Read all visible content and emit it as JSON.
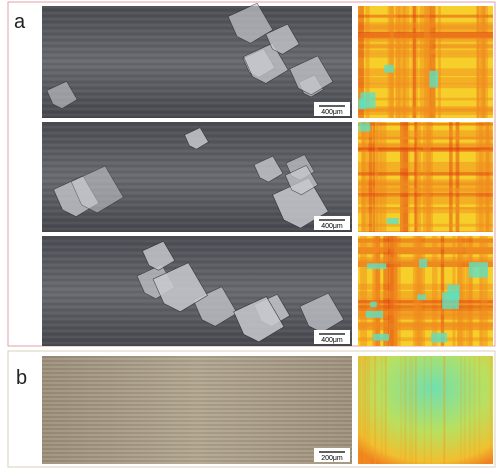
{
  "panel_a": {
    "label": "a",
    "rows": [
      {
        "scale_bar": "400μm"
      },
      {
        "scale_bar": "400μm"
      },
      {
        "scale_bar": "400μm"
      }
    ]
  },
  "panel_b": {
    "label": "b",
    "scale_bar": "200μm"
  }
}
